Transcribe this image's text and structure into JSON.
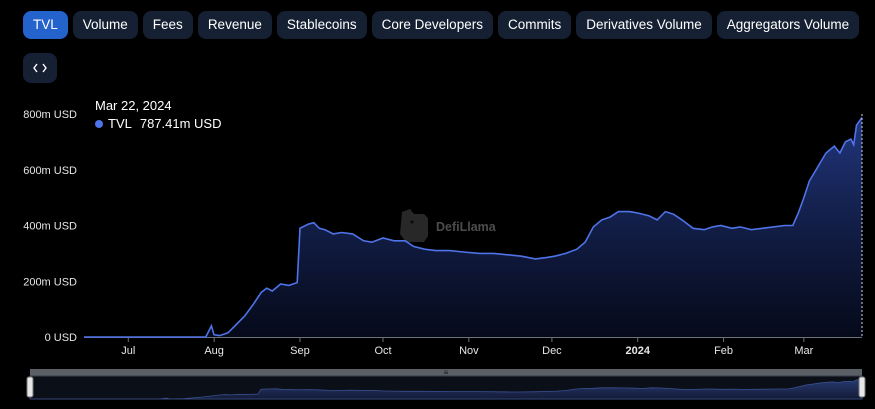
{
  "tabs": [
    {
      "label": "TVL",
      "active": true
    },
    {
      "label": "Volume",
      "active": false
    },
    {
      "label": "Fees",
      "active": false
    },
    {
      "label": "Revenue",
      "active": false
    },
    {
      "label": "Stablecoins",
      "active": false
    },
    {
      "label": "Core Developers",
      "active": false
    },
    {
      "label": "Commits",
      "active": false
    },
    {
      "label": "Derivatives Volume",
      "active": false
    },
    {
      "label": "Aggregators Volume",
      "active": false
    }
  ],
  "embed_icon": "code-brackets-icon",
  "tooltip": {
    "date": "Mar 22, 2024",
    "series": "TVL",
    "value": "787.41m USD"
  },
  "watermark": "DefiLlama",
  "colors": {
    "accent": "#4f73e8",
    "tab_active": "#2563cc",
    "tab_bg": "#162033"
  },
  "chart_data": {
    "type": "area",
    "title": "",
    "xlabel": "",
    "ylabel": "",
    "ylim": [
      0,
      800
    ],
    "y_unit": "m USD",
    "y_ticks": [
      0,
      200,
      400,
      600,
      800
    ],
    "y_tick_labels": [
      "0 USD",
      "200m USD",
      "400m USD",
      "600m USD",
      "800m USD"
    ],
    "x_range": [
      "2023-06-15",
      "2024-03-22"
    ],
    "x_ticks": [
      {
        "date": "2023-07-01",
        "label": "Jul",
        "bold": false
      },
      {
        "date": "2023-08-01",
        "label": "Aug",
        "bold": false
      },
      {
        "date": "2023-09-01",
        "label": "Sep",
        "bold": false
      },
      {
        "date": "2023-10-01",
        "label": "Oct",
        "bold": false
      },
      {
        "date": "2023-11-01",
        "label": "Nov",
        "bold": false
      },
      {
        "date": "2023-12-01",
        "label": "Dec",
        "bold": false
      },
      {
        "date": "2024-01-01",
        "label": "2024",
        "bold": true
      },
      {
        "date": "2024-02-01",
        "label": "Feb",
        "bold": false
      },
      {
        "date": "2024-03-01",
        "label": "Mar",
        "bold": false
      }
    ],
    "series": [
      {
        "name": "TVL",
        "points": [
          [
            "2023-06-15",
            0
          ],
          [
            "2023-07-15",
            0
          ],
          [
            "2023-07-29",
            0
          ],
          [
            "2023-07-31",
            40
          ],
          [
            "2023-08-01",
            8
          ],
          [
            "2023-08-03",
            5
          ],
          [
            "2023-08-06",
            15
          ],
          [
            "2023-08-09",
            45
          ],
          [
            "2023-08-12",
            75
          ],
          [
            "2023-08-15",
            115
          ],
          [
            "2023-08-18",
            160
          ],
          [
            "2023-08-20",
            175
          ],
          [
            "2023-08-22",
            165
          ],
          [
            "2023-08-25",
            190
          ],
          [
            "2023-08-28",
            185
          ],
          [
            "2023-08-31",
            195
          ],
          [
            "2023-09-01",
            390
          ],
          [
            "2023-09-04",
            405
          ],
          [
            "2023-09-06",
            410
          ],
          [
            "2023-09-08",
            390
          ],
          [
            "2023-09-10",
            385
          ],
          [
            "2023-09-13",
            370
          ],
          [
            "2023-09-16",
            375
          ],
          [
            "2023-09-20",
            370
          ],
          [
            "2023-09-24",
            345
          ],
          [
            "2023-09-27",
            340
          ],
          [
            "2023-10-01",
            355
          ],
          [
            "2023-10-05",
            345
          ],
          [
            "2023-10-09",
            345
          ],
          [
            "2023-10-12",
            325
          ],
          [
            "2023-10-16",
            315
          ],
          [
            "2023-10-20",
            310
          ],
          [
            "2023-10-25",
            310
          ],
          [
            "2023-10-30",
            305
          ],
          [
            "2023-11-05",
            300
          ],
          [
            "2023-11-10",
            300
          ],
          [
            "2023-11-15",
            295
          ],
          [
            "2023-11-20",
            290
          ],
          [
            "2023-11-25",
            280
          ],
          [
            "2023-11-29",
            285
          ],
          [
            "2023-12-02",
            290
          ],
          [
            "2023-12-06",
            300
          ],
          [
            "2023-12-10",
            315
          ],
          [
            "2023-12-13",
            340
          ],
          [
            "2023-12-16",
            395
          ],
          [
            "2023-12-19",
            420
          ],
          [
            "2023-12-22",
            430
          ],
          [
            "2023-12-25",
            450
          ],
          [
            "2023-12-29",
            450
          ],
          [
            "2024-01-01",
            445
          ],
          [
            "2024-01-05",
            435
          ],
          [
            "2024-01-08",
            420
          ],
          [
            "2024-01-11",
            450
          ],
          [
            "2024-01-14",
            440
          ],
          [
            "2024-01-17",
            420
          ],
          [
            "2024-01-21",
            390
          ],
          [
            "2024-01-25",
            385
          ],
          [
            "2024-01-28",
            395
          ],
          [
            "2024-01-31",
            400
          ],
          [
            "2024-02-04",
            390
          ],
          [
            "2024-02-07",
            395
          ],
          [
            "2024-02-11",
            385
          ],
          [
            "2024-02-15",
            390
          ],
          [
            "2024-02-19",
            395
          ],
          [
            "2024-02-23",
            400
          ],
          [
            "2024-02-26",
            400
          ],
          [
            "2024-02-28",
            445
          ],
          [
            "2024-03-01",
            500
          ],
          [
            "2024-03-03",
            560
          ],
          [
            "2024-03-06",
            610
          ],
          [
            "2024-03-09",
            660
          ],
          [
            "2024-03-12",
            685
          ],
          [
            "2024-03-14",
            660
          ],
          [
            "2024-03-16",
            700
          ],
          [
            "2024-03-18",
            710
          ],
          [
            "2024-03-19",
            690
          ],
          [
            "2024-03-20",
            760
          ],
          [
            "2024-03-22",
            787.41
          ]
        ]
      }
    ],
    "grid": false,
    "legend": "none"
  }
}
